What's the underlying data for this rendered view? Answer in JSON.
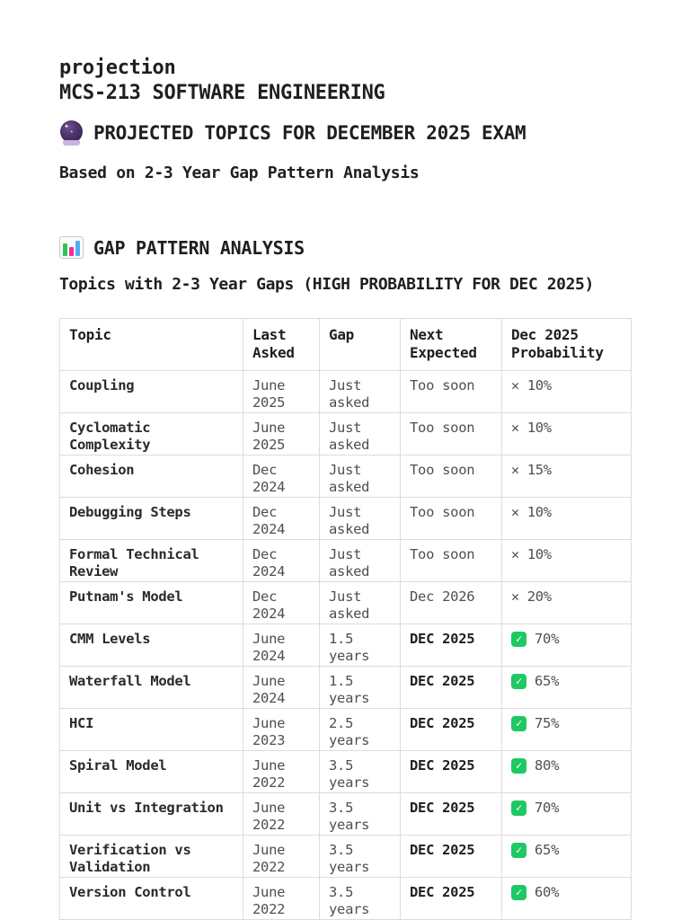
{
  "document": {
    "title_line1": "projection",
    "title_line2": "MCS-213 SOFTWARE ENGINEERING",
    "projected_heading": "PROJECTED TOPICS FOR DECEMBER 2025 EXAM",
    "subtitle": "Based on 2-3 Year Gap Pattern Analysis"
  },
  "section": {
    "heading": "GAP PATTERN ANALYSIS",
    "subheading": "Topics with 2-3 Year Gaps (HIGH PROBABILITY FOR DEC 2025)"
  },
  "icons": {
    "crystal_ball": "crystal-ball-emoji",
    "bar_chart": "bar-chart-emoji",
    "check_glyph": "✓",
    "cross_glyph": "✕"
  },
  "colors": {
    "check_green": "#1ec863",
    "text_dark": "#1f1f1f",
    "text_muted": "#4f4f4f",
    "table_border": "#dcdcdc"
  },
  "table": {
    "columns": [
      "Topic",
      "Last Asked",
      "Gap",
      "Next Expected",
      "Dec 2025 Probability"
    ],
    "rows": [
      {
        "topic": "Coupling",
        "last_asked": "June 2025",
        "gap": "Just asked",
        "next_expected": "Too soon",
        "next_bold": false,
        "status": "cross",
        "probability": "10%"
      },
      {
        "topic": "Cyclomatic Complexity",
        "last_asked": "June 2025",
        "gap": "Just asked",
        "next_expected": "Too soon",
        "next_bold": false,
        "status": "cross",
        "probability": "10%"
      },
      {
        "topic": "Cohesion",
        "last_asked": "Dec 2024",
        "gap": "Just asked",
        "next_expected": "Too soon",
        "next_bold": false,
        "status": "cross",
        "probability": "15%"
      },
      {
        "topic": "Debugging Steps",
        "last_asked": "Dec 2024",
        "gap": "Just asked",
        "next_expected": "Too soon",
        "next_bold": false,
        "status": "cross",
        "probability": "10%"
      },
      {
        "topic": "Formal Technical Review",
        "last_asked": "Dec 2024",
        "gap": "Just asked",
        "next_expected": "Too soon",
        "next_bold": false,
        "status": "cross",
        "probability": "10%"
      },
      {
        "topic": "Putnam's Model",
        "last_asked": "Dec 2024",
        "gap": "Just asked",
        "next_expected": "Dec 2026",
        "next_bold": false,
        "status": "cross",
        "probability": "20%"
      },
      {
        "topic": "CMM Levels",
        "last_asked": "June 2024",
        "gap": "1.5 years",
        "next_expected": "DEC 2025",
        "next_bold": true,
        "status": "check",
        "probability": "70%"
      },
      {
        "topic": "Waterfall Model",
        "last_asked": "June 2024",
        "gap": "1.5 years",
        "next_expected": "DEC 2025",
        "next_bold": true,
        "status": "check",
        "probability": "65%"
      },
      {
        "topic": "HCI",
        "last_asked": "June 2023",
        "gap": "2.5 years",
        "next_expected": "DEC 2025",
        "next_bold": true,
        "status": "check",
        "probability": "75%"
      },
      {
        "topic": "Spiral Model",
        "last_asked": "June 2022",
        "gap": "3.5 years",
        "next_expected": "DEC 2025",
        "next_bold": true,
        "status": "check",
        "probability": "80%"
      },
      {
        "topic": "Unit vs Integration",
        "last_asked": "June 2022",
        "gap": "3.5 years",
        "next_expected": "DEC 2025",
        "next_bold": true,
        "status": "check",
        "probability": "70%"
      },
      {
        "topic": "Verification vs Validation",
        "last_asked": "June 2022",
        "gap": "3.5 years",
        "next_expected": "DEC 2025",
        "next_bold": true,
        "status": "check",
        "probability": "65%"
      },
      {
        "topic": "Version Control",
        "last_asked": "June 2022",
        "gap": "3.5 years",
        "next_expected": "DEC 2025",
        "next_bold": true,
        "status": "check",
        "probability": "60%"
      }
    ]
  }
}
